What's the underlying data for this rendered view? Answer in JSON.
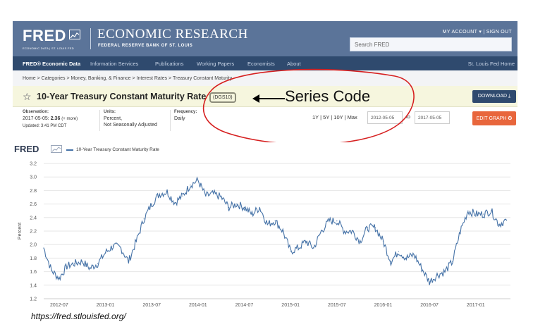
{
  "header": {
    "logo_text": "FRED",
    "logo_sub": "ECONOMIC DATA | ST. LOUIS FED",
    "site_title": "ECONOMIC RESEARCH",
    "site_subtitle": "FEDERAL RESERVE BANK OF ST. LOUIS",
    "my_account": "MY ACCOUNT ▾",
    "sign_out": "| SIGN OUT",
    "search_placeholder": "Search FRED"
  },
  "nav": {
    "brand": "FRED® Economic Data",
    "items": [
      "Information Services",
      "Publications",
      "Working Papers",
      "Economists",
      "About"
    ],
    "home": "St. Louis Fed Home"
  },
  "breadcrumb": "Home > Categories > Money, Banking, & Finance > Interest Rates > Treasury Constant Maturity",
  "series": {
    "title": "10-Year Treasury Constant Maturity Rate",
    "code": "(DGS10)",
    "annotation": "Series Code",
    "download_label": "DOWNLOAD ⤓"
  },
  "info": {
    "observation_label": "Observation:",
    "observation_date": "2017-05-05:",
    "observation_value": "2.36",
    "observation_more": "(+ more)",
    "updated": "Updated: 3:41 PM CDT",
    "units_label": "Units:",
    "units_value_1": "Percent,",
    "units_value_2": "Not Seasonally Adjusted",
    "frequency_label": "Frequency:",
    "frequency_value": "Daily",
    "ranges": "1Y | 5Y | 10Y | Max",
    "start_date": "2012-05-05",
    "to": "to",
    "end_date": "2017-05-05",
    "edit_label": "EDIT GRAPH ✪"
  },
  "colors": {
    "header": "#5b7499",
    "nav": "#2f4a6e",
    "titlebar": "#f6f6de",
    "series_line": "#4572a7",
    "annotation": "#d62020",
    "edit_button": "#e8663c"
  },
  "chart_data": {
    "type": "line",
    "legend": "10-Year Treasury Constant Maturity Rate",
    "ylabel": "Percent",
    "ylim": [
      1.2,
      3.2
    ],
    "yticks": [
      "3.2",
      "3.0",
      "2.8",
      "2.6",
      "2.4",
      "2.2",
      "2.0",
      "1.8",
      "1.6",
      "1.4",
      "1.2"
    ],
    "xticks": [
      "2012-07",
      "2013-01",
      "2013-07",
      "2014-01",
      "2014-07",
      "2015-01",
      "2015-07",
      "2016-01",
      "2016-07",
      "2017-01"
    ],
    "x": [
      "2012-05",
      "2012-06",
      "2012-07",
      "2012-08",
      "2012-09",
      "2012-10",
      "2012-11",
      "2012-12",
      "2013-01",
      "2013-02",
      "2013-03",
      "2013-04",
      "2013-05",
      "2013-06",
      "2013-07",
      "2013-08",
      "2013-09",
      "2013-10",
      "2013-11",
      "2013-12",
      "2014-01",
      "2014-02",
      "2014-03",
      "2014-04",
      "2014-05",
      "2014-06",
      "2014-07",
      "2014-08",
      "2014-09",
      "2014-10",
      "2014-11",
      "2014-12",
      "2015-01",
      "2015-02",
      "2015-03",
      "2015-04",
      "2015-05",
      "2015-06",
      "2015-07",
      "2015-08",
      "2015-09",
      "2015-10",
      "2015-11",
      "2015-12",
      "2016-01",
      "2016-02",
      "2016-03",
      "2016-04",
      "2016-05",
      "2016-06",
      "2016-07",
      "2016-08",
      "2016-09",
      "2016-10",
      "2016-11",
      "2016-12",
      "2017-01",
      "2017-02",
      "2017-03",
      "2017-04",
      "2017-05"
    ],
    "values": [
      1.95,
      1.62,
      1.5,
      1.68,
      1.72,
      1.75,
      1.65,
      1.72,
      1.88,
      1.98,
      1.95,
      1.75,
      2.05,
      2.38,
      2.6,
      2.75,
      2.78,
      2.62,
      2.72,
      2.88,
      2.95,
      2.72,
      2.75,
      2.7,
      2.55,
      2.6,
      2.55,
      2.45,
      2.55,
      2.3,
      2.35,
      2.2,
      1.9,
      1.95,
      2.05,
      1.95,
      2.2,
      2.35,
      2.35,
      2.2,
      2.2,
      2.05,
      2.25,
      2.25,
      2.05,
      1.75,
      1.9,
      1.8,
      1.85,
      1.65,
      1.45,
      1.55,
      1.6,
      1.75,
      2.2,
      2.5,
      2.45,
      2.45,
      2.5,
      2.3,
      2.36
    ]
  },
  "footer_url": "https://fred.stlouisfed.org/"
}
